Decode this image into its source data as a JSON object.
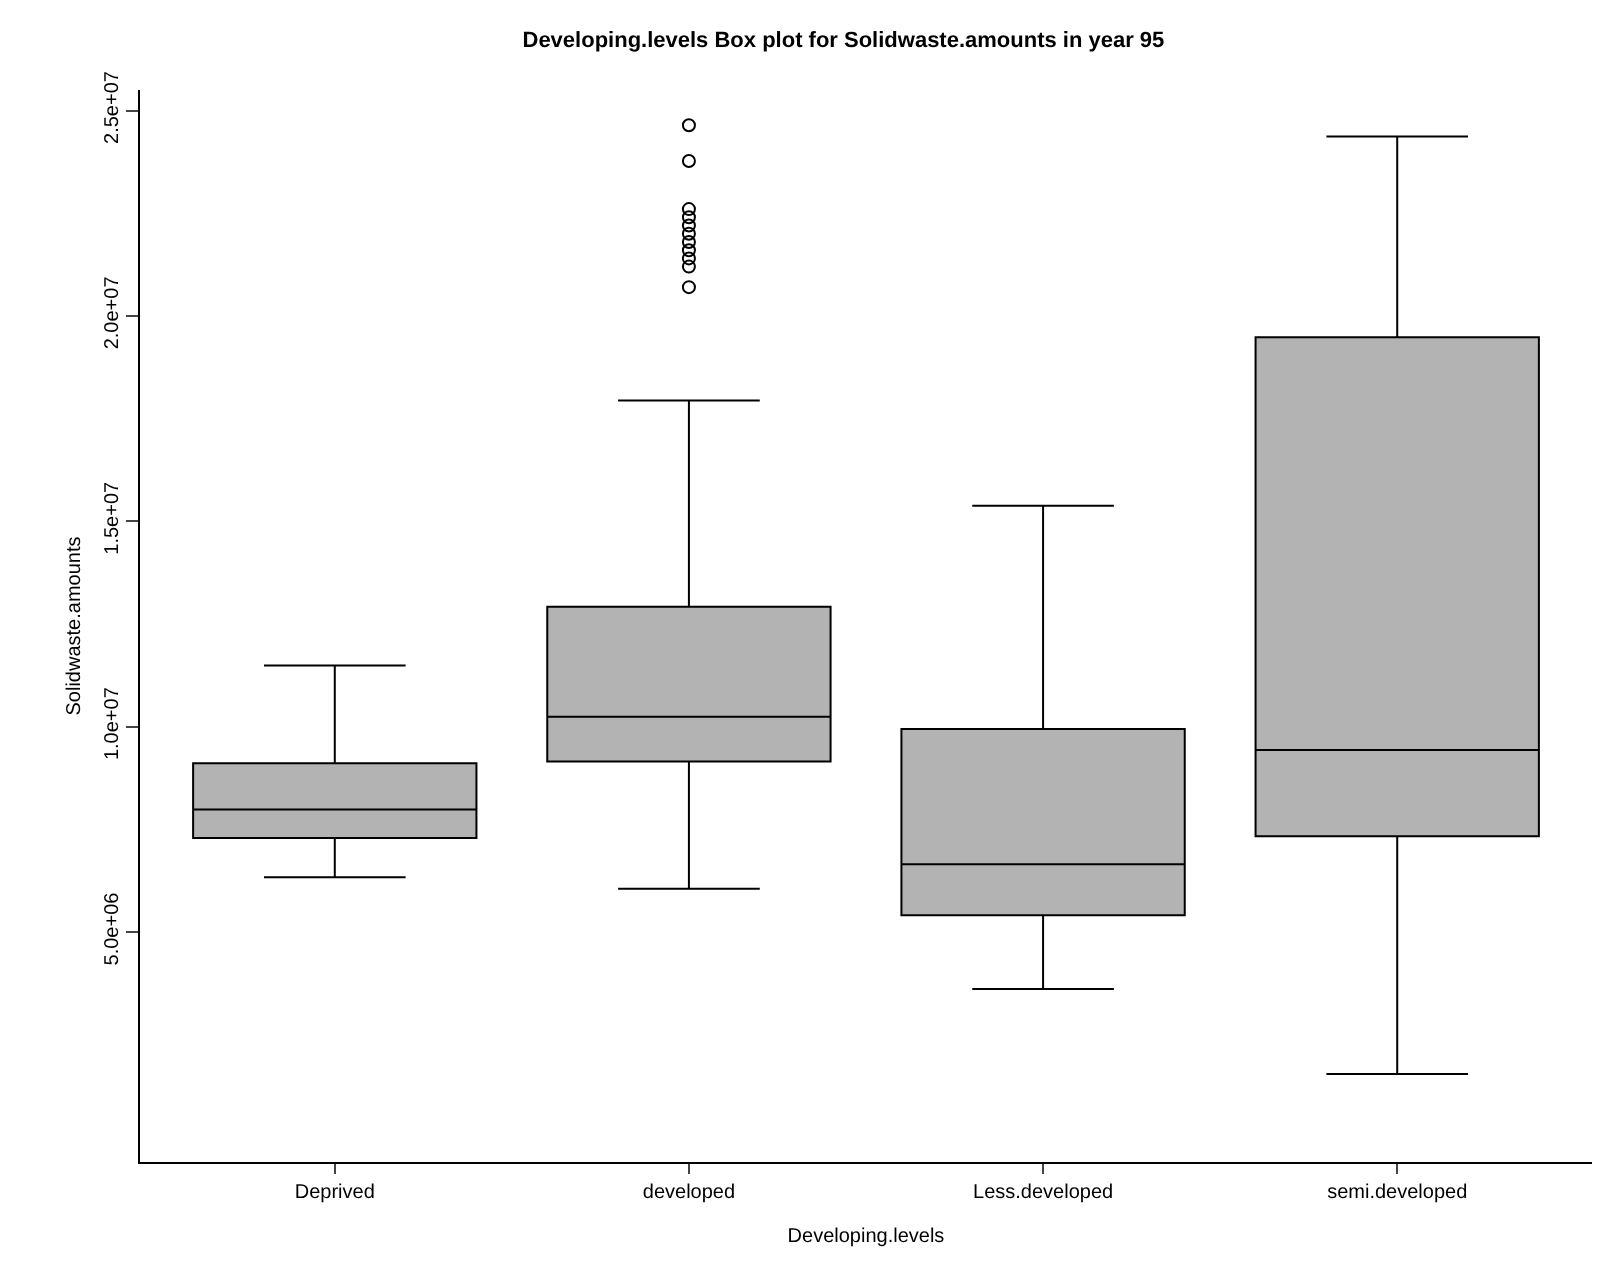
{
  "chart_data": {
    "type": "box",
    "title": "Developing.levels Box plot for Solidwaste.amounts in year 95",
    "xlabel": "Developing.levels",
    "ylabel": "Solidwaste.amounts",
    "categories": [
      "Deprived",
      "developed",
      "Less.developed",
      "semi.developed"
    ],
    "color": "#b3b3b3",
    "boxes": [
      {
        "low": 6330000,
        "q1": 7290000,
        "median": 7980000,
        "q3": 9110000,
        "high": 11490000
      },
      {
        "low": 6050000,
        "q1": 9150000,
        "median": 10240000,
        "q3": 12920000,
        "high": 17940000,
        "outliers": [
          24640000,
          23770000,
          22600000,
          22400000,
          22200000,
          22000000,
          21800000,
          21600000,
          21400000,
          21200000,
          20700000
        ]
      },
      {
        "low": 3610000,
        "q1": 5410000,
        "median": 6650000,
        "q3": 9940000,
        "high": 15380000
      },
      {
        "low": 1540000,
        "q1": 7330000,
        "median": 9430000,
        "q3": 19480000,
        "high": 24370000
      }
    ],
    "ylim": [
      -600000,
      25500000
    ],
    "yticks": [
      {
        "value": 5000000,
        "label": "5.0e+06"
      },
      {
        "value": 10000000,
        "label": "1.0e+07"
      },
      {
        "value": 15000000,
        "label": "1.5e+07"
      },
      {
        "value": 20000000,
        "label": "2.0e+07"
      },
      {
        "value": 25000000,
        "label": "2.5e+07"
      }
    ],
    "grid": false,
    "marker": "circle"
  }
}
